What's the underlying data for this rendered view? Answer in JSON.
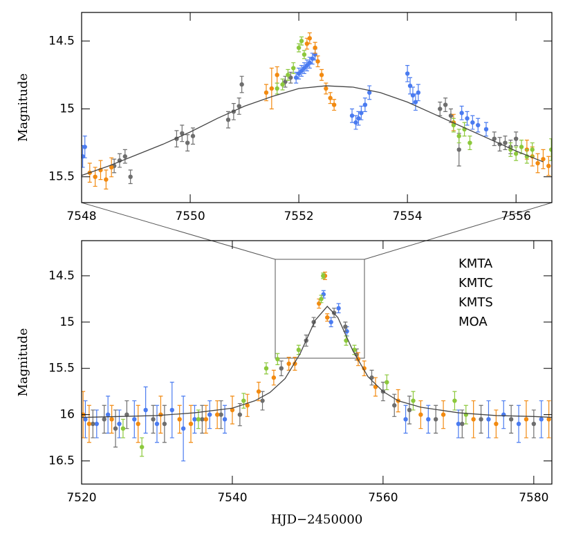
{
  "chart_data": [
    {
      "type": "scatter",
      "ylabel": "Magnitude",
      "xlim": [
        7548,
        7556.66
      ],
      "ylim": [
        15.69,
        14.29
      ],
      "xticks": [
        7548,
        7550,
        7552,
        7554,
        7556
      ],
      "yticks": [
        14.5,
        15,
        15.5
      ],
      "series": [
        {
          "color": "#4a7bf0",
          "x": [
            7548.02,
            7548.06,
            7551.95,
            7552.0,
            7552.05,
            7552.1,
            7552.15,
            7552.2,
            7552.25,
            7552.3,
            7552.98,
            7553.05,
            7553.1,
            7553.15,
            7553.22,
            7553.3,
            7554.0,
            7554.05,
            7554.1,
            7554.15,
            7554.2,
            7555.0,
            7555.1,
            7555.2,
            7555.3,
            7555.45
          ],
          "values": [
            15.35,
            15.28,
            14.77,
            14.74,
            14.72,
            14.7,
            14.68,
            14.66,
            14.63,
            14.6,
            15.05,
            15.1,
            15.07,
            15.03,
            14.97,
            14.88,
            14.74,
            14.83,
            14.9,
            14.95,
            14.88,
            15.03,
            15.07,
            15.1,
            15.12,
            15.15
          ],
          "errors": [
            0.08,
            0.08,
            0.04,
            0.04,
            0.04,
            0.04,
            0.04,
            0.04,
            0.04,
            0.04,
            0.05,
            0.05,
            0.05,
            0.05,
            0.05,
            0.05,
            0.06,
            0.06,
            0.06,
            0.06,
            0.06,
            0.05,
            0.05,
            0.05,
            0.05,
            0.05
          ]
        },
        {
          "color": "#6e6e6e",
          "x": [
            7548.6,
            7548.7,
            7548.8,
            7548.9,
            7549.75,
            7549.85,
            7549.95,
            7550.05,
            7550.7,
            7550.8,
            7550.9,
            7550.95,
            7551.75,
            7551.85,
            7554.6,
            7554.7,
            7554.8,
            7554.95,
            7555.6,
            7555.7,
            7555.8,
            7555.9,
            7556.0
          ],
          "values": [
            15.42,
            15.38,
            15.35,
            15.5,
            15.22,
            15.18,
            15.25,
            15.2,
            15.08,
            15.02,
            14.98,
            14.82,
            14.8,
            14.77,
            15.0,
            14.97,
            15.05,
            15.3,
            15.22,
            15.26,
            15.25,
            15.28,
            15.22
          ],
          "errors": [
            0.05,
            0.05,
            0.05,
            0.05,
            0.06,
            0.06,
            0.06,
            0.06,
            0.06,
            0.06,
            0.06,
            0.06,
            0.04,
            0.04,
            0.05,
            0.05,
            0.05,
            0.12,
            0.05,
            0.05,
            0.05,
            0.05,
            0.05
          ]
        },
        {
          "color": "#f28a10",
          "x": [
            7548.15,
            7548.25,
            7548.35,
            7548.45,
            7548.55,
            7551.4,
            7551.5,
            7551.6,
            7552.15,
            7552.2,
            7552.3,
            7552.35,
            7552.42,
            7552.5,
            7552.58,
            7552.65,
            7554.85,
            7556.2,
            7556.3,
            7556.4,
            7556.5,
            7556.6
          ],
          "values": [
            15.47,
            15.5,
            15.45,
            15.52,
            15.43,
            14.88,
            14.85,
            14.75,
            14.52,
            14.48,
            14.55,
            14.65,
            14.75,
            14.85,
            14.92,
            14.97,
            15.1,
            15.3,
            15.35,
            15.4,
            15.37,
            15.42
          ],
          "errors": [
            0.07,
            0.07,
            0.07,
            0.07,
            0.07,
            0.06,
            0.15,
            0.06,
            0.04,
            0.04,
            0.04,
            0.04,
            0.04,
            0.04,
            0.04,
            0.04,
            0.06,
            0.07,
            0.07,
            0.07,
            0.07,
            0.07
          ]
        },
        {
          "color": "#8cc83c",
          "x": [
            7551.6,
            7551.7,
            7551.8,
            7551.9,
            7552.0,
            7552.05,
            7552.1,
            7554.85,
            7554.95,
            7555.05,
            7555.15,
            7555.9,
            7556.0,
            7556.1,
            7556.2,
            7556.3,
            7556.65
          ],
          "values": [
            14.85,
            14.82,
            14.75,
            14.7,
            14.55,
            14.5,
            14.6,
            15.12,
            15.2,
            15.15,
            15.25,
            15.3,
            15.33,
            15.28,
            15.35,
            15.3,
            15.3
          ],
          "errors": [
            0.04,
            0.04,
            0.04,
            0.04,
            0.03,
            0.03,
            0.03,
            0.05,
            0.05,
            0.05,
            0.05,
            0.05,
            0.05,
            0.05,
            0.05,
            0.05,
            0.08
          ]
        }
      ],
      "model": {
        "color": "#444444",
        "x": [
          7548,
          7548.5,
          7549,
          7549.5,
          7550,
          7550.5,
          7551,
          7551.5,
          7552,
          7552.5,
          7553,
          7553.5,
          7554,
          7554.5,
          7555,
          7555.5,
          7556,
          7556.5
        ],
        "values": [
          15.49,
          15.42,
          15.34,
          15.26,
          15.17,
          15.07,
          14.98,
          14.91,
          14.85,
          14.83,
          14.84,
          14.88,
          14.95,
          15.04,
          15.13,
          15.22,
          15.31,
          15.39
        ]
      }
    },
    {
      "type": "scatter",
      "ylabel": "Magnitude",
      "xlabel": "HJD−2450000",
      "xlim": [
        7520,
        7582.4
      ],
      "ylim": [
        16.75,
        14.12
      ],
      "xticks": [
        7520,
        7540,
        7560,
        7580
      ],
      "yticks": [
        14.5,
        15,
        15.5,
        16,
        16.5
      ],
      "legend": "upper right",
      "series": [
        {
          "name": "KMTA",
          "color": "#4a7bf0",
          "x": [
            7520.5,
            7522,
            7523.5,
            7525,
            7527,
            7528.5,
            7530,
            7532,
            7533.5,
            7535,
            7537,
            7539,
            7552.1,
            7553.1,
            7554.1,
            7555.2,
            7563,
            7566,
            7570,
            7574,
            7576,
            7578,
            7581
          ],
          "values": [
            16.05,
            16.1,
            16.0,
            16.1,
            16.05,
            15.95,
            16.1,
            15.95,
            16.15,
            16.05,
            16.0,
            16.05,
            14.7,
            15.0,
            14.85,
            15.1,
            16.05,
            16.05,
            16.1,
            16.05,
            16.0,
            16.1,
            16.05
          ],
          "errors": [
            0.2,
            0.15,
            0.2,
            0.15,
            0.2,
            0.25,
            0.2,
            0.3,
            0.35,
            0.15,
            0.15,
            0.15,
            0.04,
            0.05,
            0.05,
            0.05,
            0.15,
            0.15,
            0.15,
            0.2,
            0.15,
            0.2,
            0.2
          ]
        },
        {
          "name": "KMTC",
          "color": "#6e6e6e",
          "x": [
            7521.5,
            7523,
            7524.5,
            7526,
            7529.5,
            7531,
            7536,
            7538.5,
            7541,
            7544,
            7546.5,
            7549.8,
            7550.8,
            7553.5,
            7555,
            7556.5,
            7558.5,
            7560,
            7561.5,
            7563.5,
            7567,
            7570.5,
            7573,
            7577,
            7580
          ],
          "values": [
            16.1,
            16.05,
            16.15,
            16.0,
            16.05,
            16.1,
            16.05,
            16.0,
            16.0,
            15.85,
            15.5,
            15.2,
            15.0,
            14.9,
            15.05,
            15.35,
            15.6,
            15.75,
            15.9,
            15.95,
            16.05,
            16.1,
            16.05,
            16.05,
            16.1
          ],
          "errors": [
            0.15,
            0.15,
            0.2,
            0.15,
            0.15,
            0.2,
            0.15,
            0.15,
            0.12,
            0.1,
            0.08,
            0.06,
            0.05,
            0.05,
            0.05,
            0.06,
            0.08,
            0.1,
            0.12,
            0.15,
            0.15,
            0.15,
            0.15,
            0.15,
            0.15
          ]
        },
        {
          "name": "KMTS",
          "color": "#f28a10",
          "x": [
            7520.2,
            7521,
            7524,
            7527.5,
            7530.5,
            7533,
            7534.5,
            7536.5,
            7538,
            7540,
            7542,
            7543.5,
            7545.5,
            7547.5,
            7548.3,
            7551.5,
            7552.3,
            7552.6,
            7556.7,
            7557.5,
            7559,
            7562,
            7565,
            7568,
            7572,
            7575,
            7579,
            7582
          ],
          "values": [
            16.0,
            16.1,
            16.05,
            16.1,
            16.0,
            16.05,
            16.1,
            16.05,
            16.0,
            15.95,
            15.9,
            15.75,
            15.6,
            15.45,
            15.45,
            14.8,
            14.5,
            14.95,
            15.4,
            15.5,
            15.7,
            15.85,
            16.0,
            16.0,
            16.05,
            16.1,
            16.05,
            16.05
          ],
          "errors": [
            0.25,
            0.2,
            0.15,
            0.2,
            0.2,
            0.15,
            0.2,
            0.15,
            0.15,
            0.15,
            0.12,
            0.1,
            0.08,
            0.07,
            0.07,
            0.05,
            0.04,
            0.04,
            0.07,
            0.08,
            0.1,
            0.12,
            0.15,
            0.15,
            0.2,
            0.15,
            0.2,
            0.2
          ]
        },
        {
          "name": "MOA",
          "color": "#8cc83c",
          "x": [
            7525.5,
            7528,
            7535.5,
            7541.5,
            7544.5,
            7546,
            7548.8,
            7551.8,
            7552.05,
            7555.1,
            7556.2,
            7560.5,
            7564,
            7569.5,
            7571
          ],
          "values": [
            16.15,
            16.35,
            16.05,
            15.85,
            15.5,
            15.4,
            15.3,
            14.75,
            14.5,
            15.2,
            15.3,
            15.65,
            15.85,
            15.85,
            16.0
          ],
          "errors": [
            0.1,
            0.1,
            0.1,
            0.08,
            0.06,
            0.06,
            0.05,
            0.04,
            0.03,
            0.05,
            0.05,
            0.08,
            0.1,
            0.1,
            0.1
          ]
        }
      ],
      "model": {
        "color": "#444444",
        "x": [
          7520,
          7525,
          7530,
          7535,
          7540,
          7543,
          7545,
          7547,
          7549,
          7551,
          7552.6,
          7554,
          7556,
          7558,
          7560,
          7562,
          7565,
          7570,
          7575,
          7580,
          7582.5
        ],
        "values": [
          16.03,
          16.02,
          16.01,
          15.98,
          15.93,
          15.85,
          15.76,
          15.61,
          15.34,
          14.98,
          14.83,
          14.95,
          15.31,
          15.59,
          15.75,
          15.85,
          15.92,
          15.98,
          16.01,
          16.02,
          16.03
        ]
      }
    }
  ]
}
